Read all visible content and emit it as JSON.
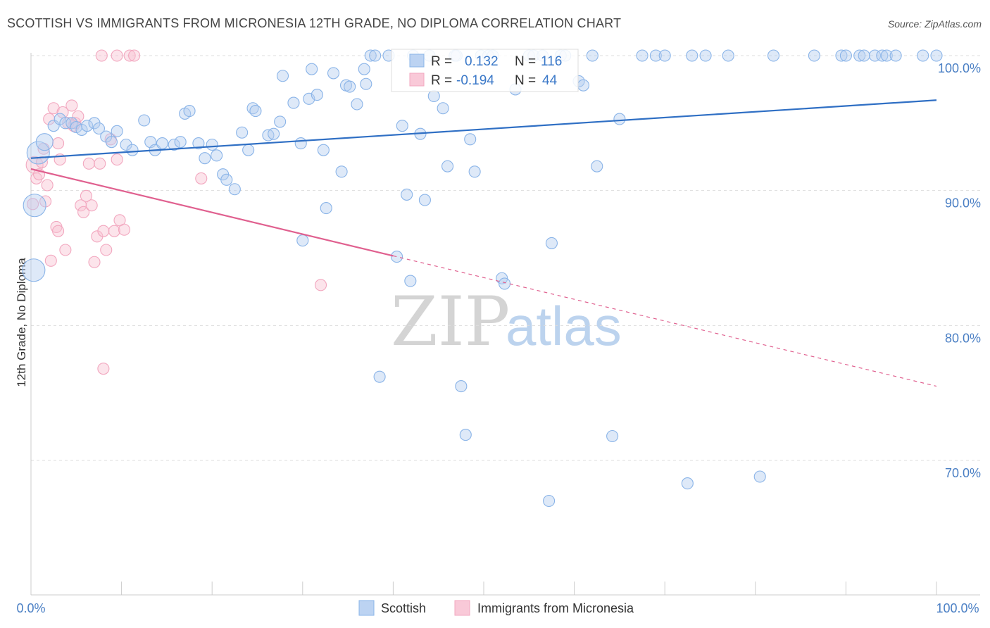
{
  "title": "SCOTTISH VS IMMIGRANTS FROM MICRONESIA 12TH GRADE, NO DIPLOMA CORRELATION CHART",
  "source": "Source: ZipAtlas.com",
  "watermark": {
    "zip": "ZIP",
    "atlas": "atlas"
  },
  "colors": {
    "blue": "#8ab4e8",
    "blue_line": "#2f6fc4",
    "pink": "#f2a7bf",
    "pink_line": "#e0608f",
    "grid": "#dddddd",
    "axis_text": "#4a7fc4"
  },
  "stats": {
    "r_label": "R =",
    "n_label": "N =",
    "blue": {
      "r": "0.132",
      "n": "116"
    },
    "pink": {
      "r": "-0.194",
      "n": "44"
    }
  },
  "legend": {
    "blue": "Scottish",
    "pink": "Immigrants from Micronesia"
  },
  "chart_data": {
    "type": "scatter",
    "xlabel": "",
    "ylabel": "12th Grade, No Diploma",
    "xlim": [
      0,
      100
    ],
    "ylim": [
      60,
      100
    ],
    "x_tick_labels": [
      "0.0%",
      "100.0%"
    ],
    "y_ticks": [
      70,
      80,
      90,
      100
    ],
    "y_tick_labels": [
      "70.0%",
      "80.0%",
      "90.0%",
      "100.0%"
    ],
    "series": [
      {
        "name": "Scottish",
        "r": 0.132,
        "n": 116,
        "trend": {
          "x0": 0,
          "y0": 92.4,
          "x1": 100,
          "y1": 96.7,
          "solid_until": 100
        },
        "points": [
          [
            0.8,
            92.8,
            3
          ],
          [
            1.5,
            93.6,
            2
          ],
          [
            2.5,
            94.8,
            1
          ],
          [
            3.2,
            95.3,
            1
          ],
          [
            3.8,
            95.0,
            1
          ],
          [
            4.5,
            95.0,
            1
          ],
          [
            5.0,
            94.7,
            1
          ],
          [
            5.6,
            94.5,
            1
          ],
          [
            6.2,
            94.8,
            1
          ],
          [
            7.0,
            95.0,
            1
          ],
          [
            7.5,
            94.6,
            1
          ],
          [
            8.3,
            94.0,
            1
          ],
          [
            8.9,
            93.6,
            1
          ],
          [
            9.5,
            94.4,
            1
          ],
          [
            10.5,
            93.4,
            1
          ],
          [
            11.2,
            93.0,
            1
          ],
          [
            12.5,
            95.2,
            1
          ],
          [
            13.2,
            93.6,
            1
          ],
          [
            13.7,
            93.0,
            1
          ],
          [
            14.5,
            93.5,
            1
          ],
          [
            15.8,
            93.4,
            1
          ],
          [
            16.5,
            93.6,
            1
          ],
          [
            17.0,
            95.7,
            1
          ],
          [
            17.5,
            95.9,
            1
          ],
          [
            18.5,
            93.5,
            1
          ],
          [
            19.2,
            92.4,
            1
          ],
          [
            20.0,
            93.4,
            1
          ],
          [
            20.5,
            92.6,
            1
          ],
          [
            21.2,
            91.2,
            1
          ],
          [
            21.6,
            90.8,
            1
          ],
          [
            22.5,
            90.1,
            1
          ],
          [
            23.3,
            94.3,
            1
          ],
          [
            24.0,
            93.0,
            1
          ],
          [
            24.5,
            96.1,
            1
          ],
          [
            24.8,
            95.9,
            1
          ],
          [
            26.2,
            94.1,
            1
          ],
          [
            26.8,
            94.2,
            1
          ],
          [
            27.5,
            95.1,
            1
          ],
          [
            27.8,
            98.5,
            1
          ],
          [
            29.0,
            96.5,
            1
          ],
          [
            29.8,
            93.5,
            1
          ],
          [
            30.7,
            96.8,
            1
          ],
          [
            31.6,
            97.1,
            1
          ],
          [
            32.3,
            93.0,
            1
          ],
          [
            32.6,
            88.7,
            1
          ],
          [
            33.4,
            98.7,
            1
          ],
          [
            34.3,
            91.4,
            1
          ],
          [
            34.8,
            97.8,
            1
          ],
          [
            35.2,
            97.7,
            1
          ],
          [
            36.0,
            96.4,
            1
          ],
          [
            36.8,
            99.0,
            1
          ],
          [
            37.0,
            97.9,
            1
          ],
          [
            31.0,
            99.0,
            1
          ],
          [
            30.0,
            86.3,
            1
          ],
          [
            37.5,
            100.0,
            1
          ],
          [
            38.0,
            100.0,
            1
          ],
          [
            38.5,
            76.2,
            1
          ],
          [
            39.5,
            100.0,
            1
          ],
          [
            40.4,
            85.1,
            1
          ],
          [
            41.0,
            94.8,
            1
          ],
          [
            41.5,
            89.7,
            1
          ],
          [
            41.9,
            83.3,
            1
          ],
          [
            42.2,
            100.0,
            1
          ],
          [
            43.0,
            94.2,
            1
          ],
          [
            43.5,
            89.3,
            1
          ],
          [
            44.0,
            100.0,
            1
          ],
          [
            44.5,
            97.0,
            1
          ],
          [
            45.5,
            96.1,
            1
          ],
          [
            46.0,
            91.8,
            1
          ],
          [
            46.8,
            100.0,
            1
          ],
          [
            47.0,
            100.0,
            1
          ],
          [
            47.5,
            75.5,
            1
          ],
          [
            48.0,
            71.9,
            1
          ],
          [
            48.5,
            93.8,
            1
          ],
          [
            49.0,
            91.4,
            1
          ],
          [
            49.7,
            100.0,
            1
          ],
          [
            50.5,
            100.0,
            1
          ],
          [
            51.0,
            100.0,
            1
          ],
          [
            52.0,
            83.5,
            1
          ],
          [
            52.3,
            83.1,
            1
          ],
          [
            53.5,
            97.5,
            1
          ],
          [
            55.0,
            100.0,
            1
          ],
          [
            55.5,
            100.0,
            1
          ],
          [
            56.5,
            100.0,
            1
          ],
          [
            57.2,
            67.0,
            1
          ],
          [
            57.5,
            86.1,
            1
          ],
          [
            58.5,
            100.0,
            1
          ],
          [
            59.0,
            100.0,
            1
          ],
          [
            60.5,
            98.1,
            1
          ],
          [
            61.0,
            97.8,
            1
          ],
          [
            62.0,
            100.0,
            1
          ],
          [
            62.5,
            91.8,
            1
          ],
          [
            64.2,
            71.8,
            1
          ],
          [
            65.0,
            95.3,
            1
          ],
          [
            67.5,
            100.0,
            1
          ],
          [
            69.0,
            100.0,
            1
          ],
          [
            70.0,
            100.0,
            1
          ],
          [
            72.5,
            68.3,
            1
          ],
          [
            73.0,
            100.0,
            1
          ],
          [
            74.5,
            100.0,
            1
          ],
          [
            77.0,
            100.0,
            1
          ],
          [
            80.5,
            68.8,
            1
          ],
          [
            82.0,
            100.0,
            1
          ],
          [
            86.5,
            100.0,
            1
          ],
          [
            89.5,
            100.0,
            1
          ],
          [
            90.0,
            100.0,
            1
          ],
          [
            91.5,
            100.0,
            1
          ],
          [
            92.0,
            100.0,
            1
          ],
          [
            93.2,
            100.0,
            1
          ],
          [
            94.0,
            100.0,
            1
          ],
          [
            94.5,
            100.0,
            1
          ],
          [
            95.5,
            100.0,
            1
          ],
          [
            98.5,
            100.0,
            1
          ],
          [
            100.0,
            100.0,
            1
          ],
          [
            0.4,
            88.9,
            3
          ],
          [
            0.3,
            84.1,
            3
          ]
        ]
      },
      {
        "name": "Immigrants from Micronesia",
        "r": -0.194,
        "n": 44,
        "trend": {
          "x0": 0,
          "y0": 91.6,
          "x1": 100,
          "y1": 75.5,
          "solid_until": 40
        },
        "points": [
          [
            0.4,
            91.9,
            2
          ],
          [
            0.6,
            90.9,
            1
          ],
          [
            0.9,
            91.2,
            1
          ],
          [
            1.2,
            92.1,
            1
          ],
          [
            1.4,
            93.1,
            1
          ],
          [
            1.6,
            89.2,
            1
          ],
          [
            1.8,
            90.4,
            1
          ],
          [
            2.0,
            95.3,
            1
          ],
          [
            2.2,
            84.8,
            1
          ],
          [
            2.5,
            96.1,
            1
          ],
          [
            2.8,
            87.3,
            1
          ],
          [
            3.0,
            93.5,
            1
          ],
          [
            3.2,
            92.3,
            1
          ],
          [
            3.5,
            95.8,
            1
          ],
          [
            3.8,
            85.6,
            1
          ],
          [
            4.1,
            95.0,
            1
          ],
          [
            4.5,
            96.3,
            1
          ],
          [
            4.7,
            94.8,
            1
          ],
          [
            4.9,
            95.0,
            1
          ],
          [
            5.2,
            95.5,
            1
          ],
          [
            5.5,
            88.9,
            1
          ],
          [
            5.8,
            88.4,
            1
          ],
          [
            6.1,
            89.6,
            1
          ],
          [
            6.4,
            92.0,
            1
          ],
          [
            6.7,
            88.9,
            1
          ],
          [
            7.0,
            84.7,
            1
          ],
          [
            7.3,
            86.6,
            1
          ],
          [
            7.6,
            92.0,
            1
          ],
          [
            8.0,
            87.0,
            1
          ],
          [
            8.3,
            85.6,
            1
          ],
          [
            8.8,
            93.8,
            1
          ],
          [
            9.2,
            87.0,
            1
          ],
          [
            9.5,
            92.3,
            1
          ],
          [
            9.8,
            87.8,
            1
          ],
          [
            10.3,
            87.1,
            1
          ],
          [
            3.0,
            87.0,
            1
          ],
          [
            7.8,
            100.0,
            1
          ],
          [
            9.5,
            100.0,
            1
          ],
          [
            10.9,
            100.0,
            1
          ],
          [
            11.4,
            100.0,
            1
          ],
          [
            18.8,
            90.9,
            1
          ],
          [
            32.0,
            83.0,
            1
          ],
          [
            8.0,
            76.8,
            1
          ],
          [
            0.2,
            89.0,
            1
          ]
        ]
      }
    ]
  }
}
